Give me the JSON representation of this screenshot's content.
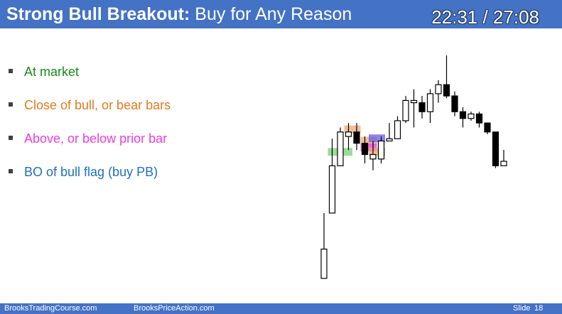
{
  "slide": {
    "title_strong": "Strong Bull Breakout:",
    "title_rest": "Buy for Any Reason",
    "timer": "22:31 / 27:08"
  },
  "bullets": [
    {
      "text": "At market",
      "color": "#1a8a1a"
    },
    {
      "text": "Close of bull, or bear bars",
      "color": "#e07b20"
    },
    {
      "text": "Above, or below prior bar",
      "color": "#e83fd8"
    },
    {
      "text": "BO of bull flag (buy PB)",
      "color": "#1f6fbf"
    }
  ],
  "footer": {
    "left": "BrooksTradingCourse.com",
    "center": "BrooksPriceAction.com",
    "slide_label": "Slide",
    "slide_number": "18"
  },
  "colors": {
    "header": "#4472c4",
    "highlight_green": "#7ccf7c",
    "highlight_orange": "#f0a870",
    "highlight_magenta": "#e040d0",
    "highlight_blue": "#6a5ae0"
  },
  "chart_data": {
    "type": "candlestick",
    "bars": [
      {
        "o": 14,
        "h": 1,
        "l": 30,
        "c": 1,
        "kind": "bull"
      },
      {
        "o": 30,
        "h": 31,
        "l": 63,
        "c": 51,
        "kind": "bull"
      },
      {
        "o": 51,
        "h": 64,
        "l": 68,
        "c": 66,
        "kind": "bull"
      },
      {
        "o": 64,
        "h": 58,
        "l": 70,
        "c": 66,
        "kind": "bull"
      },
      {
        "o": 66,
        "h": 58,
        "l": 70,
        "c": 61,
        "kind": "bear"
      },
      {
        "o": 61,
        "h": 52,
        "l": 64,
        "c": 56,
        "kind": "bear"
      },
      {
        "o": 56,
        "h": 49,
        "l": 62,
        "c": 54,
        "kind": "bull"
      },
      {
        "o": 54,
        "h": 52,
        "l": 64,
        "c": 62,
        "kind": "bull"
      },
      {
        "o": 62,
        "h": 62,
        "l": 70,
        "c": 63,
        "kind": "bull"
      },
      {
        "o": 63,
        "h": 63,
        "l": 73,
        "c": 71,
        "kind": "bull"
      },
      {
        "o": 71,
        "h": 70,
        "l": 82,
        "c": 80,
        "kind": "bull"
      },
      {
        "o": 80,
        "h": 68,
        "l": 85,
        "c": 79,
        "kind": "bull"
      },
      {
        "o": 79,
        "h": 72,
        "l": 82,
        "c": 75,
        "kind": "bear"
      },
      {
        "o": 75,
        "h": 70,
        "l": 85,
        "c": 83,
        "kind": "bull"
      },
      {
        "o": 83,
        "h": 79,
        "l": 89,
        "c": 87,
        "kind": "bull"
      },
      {
        "o": 87,
        "h": 81,
        "l": 100,
        "c": 82,
        "kind": "bear"
      },
      {
        "o": 82,
        "h": 73,
        "l": 84,
        "c": 75,
        "kind": "bear"
      },
      {
        "o": 75,
        "h": 68,
        "l": 77,
        "c": 72,
        "kind": "bear"
      },
      {
        "o": 72,
        "h": 71,
        "l": 75,
        "c": 74,
        "kind": "bull"
      },
      {
        "o": 74,
        "h": 68,
        "l": 75,
        "c": 70,
        "kind": "bear"
      },
      {
        "o": 70,
        "h": 65,
        "l": 70,
        "c": 66,
        "kind": "bear"
      },
      {
        "o": 66,
        "h": 50,
        "l": 66,
        "c": 51,
        "kind": "bear"
      },
      {
        "o": 51,
        "h": 51,
        "l": 58,
        "c": 53,
        "kind": "bull"
      }
    ],
    "highlights": [
      {
        "bar": 1,
        "level": 57,
        "width": 3,
        "color": "highlight_green"
      },
      {
        "bar": 3,
        "level": 67,
        "width": 2,
        "color": "highlight_orange"
      },
      {
        "bar": 5,
        "level": 62,
        "width": 2,
        "color": "highlight_orange"
      },
      {
        "bar": 5,
        "level": 59,
        "width": 2,
        "color": "highlight_magenta"
      },
      {
        "bar": 6,
        "level": 57,
        "width": 2,
        "color": "highlight_orange"
      },
      {
        "bar": 6,
        "level": 63,
        "width": 2,
        "color": "highlight_blue"
      }
    ]
  }
}
